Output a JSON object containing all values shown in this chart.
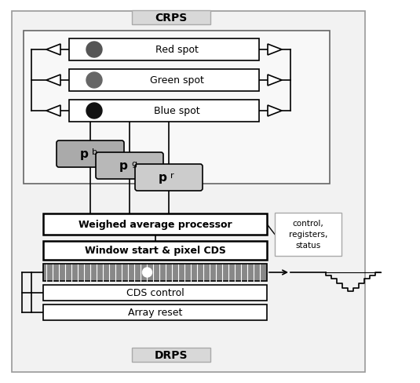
{
  "bg_color": "#ffffff",
  "outer_bg": "#f0f0f0",
  "crps_label": "CRPS",
  "drps_label": "DRPS",
  "red_spot_label": "Red spot",
  "green_spot_label": "Green spot",
  "blue_spot_label": "Blue spot",
  "pb_label": "p",
  "pb_sub": "b",
  "pg_label": "p",
  "pg_sub": "g",
  "pr_label": "p",
  "pr_sub": "r",
  "wap_label": "Weighed average processor",
  "cds_label": "Window start & pixel CDS",
  "cds_ctrl_label": "CDS control",
  "arr_reset_label": "Array reset",
  "ctrl_label": "control,\nregisters,\nstatus",
  "red_dot_color": "#555555",
  "green_dot_color": "#666666",
  "blue_dot_color": "#111111",
  "pb_box_color": "#aaaaaa",
  "pg_box_color": "#b8b8b8",
  "pr_box_color": "#cccccc",
  "crps_box_color": "#d8d8d8",
  "pixel_array_color": "#888888",
  "line_color": "#000000",
  "white": "#ffffff",
  "ctrl_box_edge": "#aaaaaa"
}
